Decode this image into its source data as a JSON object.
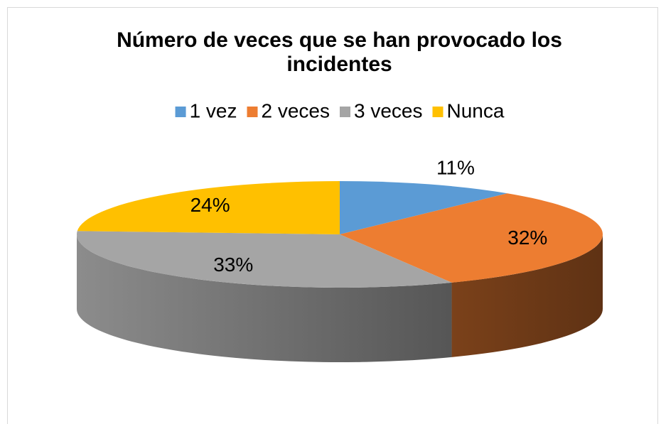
{
  "chart_data": {
    "type": "pie",
    "title": "Número de veces que se han provocado los incidentes",
    "categories": [
      "1 vez",
      "2 veces",
      "3 veces",
      "Nunca"
    ],
    "values": [
      11,
      32,
      33,
      24
    ],
    "value_labels": [
      "11%",
      "32%",
      "33%",
      "24%"
    ],
    "colors": [
      "#5b9bd5",
      "#ed7d31",
      "#a5a5a5",
      "#ffc000"
    ],
    "legend": "top"
  }
}
